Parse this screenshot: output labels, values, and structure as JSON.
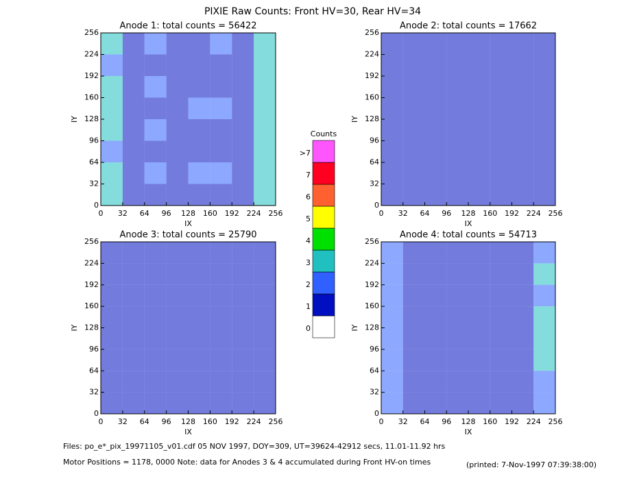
{
  "title": "PIXIE Raw Counts:  Front HV=30, Rear HV=34",
  "chart_data": [
    {
      "type": "heatmap",
      "title": "Anode 1: total counts = 56422",
      "xlabel": "IX",
      "ylabel": "IY",
      "xlim": [
        0,
        256
      ],
      "ylim": [
        0,
        256
      ],
      "xticks": [
        0,
        32,
        64,
        96,
        128,
        160,
        192,
        224,
        256
      ],
      "yticks": [
        0,
        32,
        64,
        96,
        128,
        160,
        192,
        224,
        256
      ],
      "z": [
        [
          2.2,
          1.0,
          1.3,
          0.5,
          0.9,
          1.2,
          1.0,
          2.4
        ],
        [
          2.0,
          0.8,
          1.0,
          0.4,
          0.6,
          0.6,
          0.8,
          2.2
        ],
        [
          2.3,
          0.9,
          1.4,
          0.4,
          0.7,
          0.6,
          0.9,
          2.3
        ],
        [
          2.1,
          0.8,
          0.9,
          0.4,
          1.2,
          1.1,
          0.8,
          2.5
        ],
        [
          2.2,
          0.8,
          1.3,
          0.4,
          0.7,
          0.6,
          0.9,
          2.2
        ],
        [
          2.0,
          0.8,
          0.9,
          0.4,
          0.6,
          0.6,
          0.8,
          2.1
        ],
        [
          2.4,
          1.0,
          1.5,
          0.5,
          1.1,
          1.2,
          1.0,
          2.5
        ],
        [
          2.1,
          0.9,
          1.0,
          0.5,
          0.7,
          0.7,
          0.9,
          2.2
        ]
      ]
    },
    {
      "type": "heatmap",
      "title": "Anode 2: total counts = 17662",
      "xlabel": "IX",
      "ylabel": "IY",
      "xlim": [
        0,
        256
      ],
      "ylim": [
        0,
        256
      ],
      "xticks": [
        0,
        32,
        64,
        96,
        128,
        160,
        192,
        224,
        256
      ],
      "yticks": [
        0,
        32,
        64,
        96,
        128,
        160,
        192,
        224,
        256
      ],
      "z": [
        [
          0.3,
          0.2,
          0.4,
          0.2,
          0.2,
          0.3,
          0.2,
          0.5
        ],
        [
          0.3,
          0.2,
          0.2,
          0.2,
          0.2,
          0.2,
          0.2,
          0.4
        ],
        [
          0.3,
          0.2,
          0.4,
          0.2,
          0.2,
          0.2,
          0.3,
          0.4
        ],
        [
          0.3,
          0.2,
          0.3,
          0.2,
          0.2,
          0.4,
          0.3,
          0.4
        ],
        [
          0.3,
          0.2,
          0.4,
          0.2,
          0.2,
          0.2,
          0.2,
          0.3
        ],
        [
          0.3,
          0.2,
          0.3,
          0.2,
          0.2,
          0.2,
          0.2,
          0.3
        ],
        [
          0.3,
          0.2,
          0.4,
          0.2,
          0.2,
          0.3,
          0.2,
          0.3
        ],
        [
          0.3,
          0.2,
          0.2,
          0.2,
          0.2,
          0.2,
          0.2,
          0.3
        ]
      ]
    },
    {
      "type": "heatmap",
      "title": "Anode 3: total counts = 25790",
      "xlabel": "IX",
      "ylabel": "IY",
      "xlim": [
        0,
        256
      ],
      "ylim": [
        0,
        256
      ],
      "xticks": [
        0,
        32,
        64,
        96,
        128,
        160,
        192,
        224,
        256
      ],
      "yticks": [
        0,
        32,
        64,
        96,
        128,
        160,
        192,
        224,
        256
      ],
      "z": [
        [
          0.4,
          0.4,
          0.4,
          0.4,
          0.4,
          0.4,
          0.4,
          0.4
        ],
        [
          0.4,
          0.4,
          0.4,
          0.4,
          0.4,
          0.4,
          0.4,
          0.4
        ],
        [
          0.4,
          0.4,
          0.4,
          0.4,
          0.4,
          0.4,
          0.4,
          0.4
        ],
        [
          0.4,
          0.4,
          0.4,
          0.4,
          0.4,
          0.4,
          0.4,
          0.4
        ],
        [
          0.4,
          0.4,
          0.4,
          0.4,
          0.4,
          0.4,
          0.4,
          0.4
        ],
        [
          0.4,
          0.4,
          0.4,
          0.4,
          0.4,
          0.4,
          0.4,
          0.4
        ],
        [
          0.4,
          0.4,
          0.4,
          0.4,
          0.4,
          0.4,
          0.4,
          0.4
        ],
        [
          0.4,
          0.4,
          0.4,
          0.4,
          0.4,
          0.4,
          0.4,
          0.4
        ]
      ]
    },
    {
      "type": "heatmap",
      "title": "Anode 4: total counts = 54713",
      "xlabel": "IX",
      "ylabel": "IY",
      "xlim": [
        0,
        256
      ],
      "ylim": [
        0,
        256
      ],
      "xticks": [
        0,
        32,
        64,
        96,
        128,
        160,
        192,
        224,
        256
      ],
      "yticks": [
        0,
        32,
        64,
        96,
        128,
        160,
        192,
        224,
        256
      ],
      "z": [
        [
          1.5,
          0.7,
          0.6,
          0.6,
          0.6,
          0.6,
          0.7,
          2.0
        ],
        [
          1.6,
          0.7,
          0.6,
          0.6,
          0.6,
          0.6,
          0.7,
          2.1
        ],
        [
          1.6,
          0.7,
          0.6,
          0.6,
          0.6,
          0.6,
          0.7,
          2.0
        ],
        [
          1.7,
          0.7,
          0.6,
          0.6,
          0.6,
          0.6,
          0.7,
          2.1
        ],
        [
          1.8,
          0.8,
          0.6,
          0.6,
          0.6,
          0.6,
          0.7,
          2.2
        ],
        [
          1.7,
          0.7,
          0.6,
          0.6,
          0.6,
          0.6,
          0.7,
          2.1
        ],
        [
          1.6,
          0.7,
          0.6,
          0.6,
          0.6,
          0.6,
          0.7,
          2.0
        ],
        [
          1.5,
          0.7,
          0.6,
          0.6,
          0.6,
          0.6,
          0.7,
          1.9
        ]
      ]
    }
  ],
  "colorbar": {
    "title": "Counts",
    "labels": [
      "0",
      "1",
      "2",
      "3",
      "4",
      "5",
      "6",
      "7",
      ">7"
    ],
    "colors": [
      "#ffffff",
      "#0010c0",
      "#3060ff",
      "#20c0c0",
      "#00e000",
      "#ffff00",
      "#ff6030",
      "#ff0020",
      "#ff55ff"
    ]
  },
  "footer": {
    "files": "Files: po_e*_pix_19971105_v01.cdf    05 NOV 1997, DOY=309, UT=39624-42912 secs, 11.01-11.92 hrs",
    "motor": "Motor Positions = 1178, 0000    Note: data for Anodes 3 & 4 accumulated during Front HV-on times",
    "printed": "(printed:  7-Nov-1997 07:39:38:00)"
  }
}
